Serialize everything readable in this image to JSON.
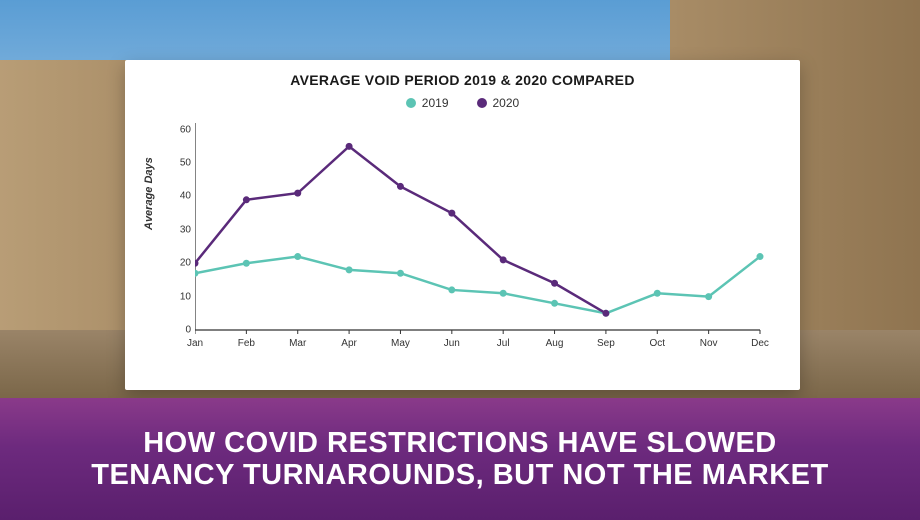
{
  "banner": {
    "line1": "HOW COVID RESTRICTIONS HAVE SLOWED",
    "line2": "TENANCY TURNAROUNDS, BUT NOT THE MARKET",
    "bg_gradient": [
      "#8a3a8a",
      "#6d2a7e",
      "#5a1f6d"
    ],
    "text_color": "#ffffff",
    "font_size": 29,
    "font_weight": 800
  },
  "chart": {
    "type": "line",
    "title": "AVERAGE VOID PERIOD 2019 & 2020 COMPARED",
    "title_fontsize": 14,
    "title_weight": 800,
    "background_color": "#ffffff",
    "ylabel": "Average Days",
    "ylabel_fontsize": 11,
    "ylabel_style": "italic",
    "categories": [
      "Jan",
      "Feb",
      "Mar",
      "Apr",
      "May",
      "Jun",
      "Jul",
      "Aug",
      "Sep",
      "Oct",
      "Nov",
      "Dec"
    ],
    "ylim": [
      0,
      62
    ],
    "yticks": [
      0,
      10,
      20,
      30,
      40,
      50,
      60
    ],
    "tick_fontsize": 10,
    "axis_color": "#333333",
    "line_width": 2.5,
    "marker_radius": 3.5,
    "legend": {
      "position": "top-center",
      "items": [
        {
          "label": "2019",
          "color": "#5cc4b4"
        },
        {
          "label": "2020",
          "color": "#5a2a7a"
        }
      ]
    },
    "series": [
      {
        "name": "2019",
        "color": "#5cc4b4",
        "values": [
          17,
          20,
          22,
          18,
          17,
          12,
          11,
          8,
          5,
          11,
          10,
          22
        ]
      },
      {
        "name": "2020",
        "color": "#5a2a7a",
        "values": [
          20,
          39,
          41,
          55,
          43,
          35,
          21,
          14,
          5,
          null,
          null,
          null
        ]
      }
    ]
  },
  "background": {
    "sky_gradient": [
      "#5a9dd4",
      "#9dc4e4"
    ],
    "building_color": "#a88c66",
    "road_color": "#7a6648"
  }
}
